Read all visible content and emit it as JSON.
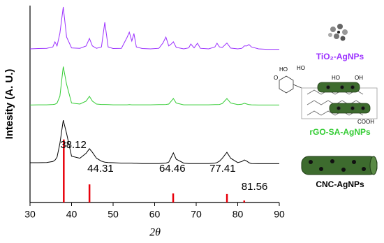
{
  "chart_data": {
    "type": "line",
    "xlabel": "2θ",
    "ylabel": "Intesity (A. U.)",
    "xlim": [
      30,
      90
    ],
    "xticks": [
      30,
      40,
      50,
      60,
      70,
      80,
      90
    ],
    "ylim": [
      0,
      100
    ],
    "x": [
      30,
      32,
      34,
      35.5,
      36,
      36.5,
      37.2,
      38,
      38.8,
      40,
      42,
      43.5,
      44.3,
      45,
      46,
      47.2,
      48,
      48.8,
      50,
      52,
      53.4,
      53.9,
      54.5,
      55,
      55.6,
      57,
      59,
      61,
      62,
      62.7,
      63.4,
      64,
      64.5,
      65.2,
      67,
      68.2,
      68.7,
      69.5,
      70.3,
      71,
      73,
      74.5,
      75,
      75.6,
      76.3,
      77.4,
      78.3,
      80,
      81,
      81.6,
      82.2,
      82.7,
      83.3,
      85,
      87,
      90
    ],
    "series": [
      {
        "name": "TiO₂-AgNPs",
        "color": "#9b30ff",
        "values": [
          78,
          78.2,
          78.3,
          79,
          81.6,
          79.5,
          86,
          99.3,
          84,
          78.5,
          78.3,
          79.5,
          83.3,
          79.5,
          78.3,
          79,
          91.5,
          79,
          78.2,
          78.3,
          84,
          86.5,
          82,
          85.8,
          79,
          78.2,
          78,
          78.3,
          81,
          84,
          79.5,
          80.5,
          81.6,
          78.8,
          78,
          78.5,
          80.5,
          78.5,
          80.9,
          78.3,
          78,
          79,
          80.9,
          79,
          78.8,
          81,
          78.4,
          78,
          78.3,
          79.5,
          79.5,
          80.2,
          79,
          78,
          77.8,
          77.8
        ]
      },
      {
        "name": "rGO-SA-AgNPs",
        "color": "#33cc33",
        "values": [
          49.5,
          49.6,
          49.6,
          49.8,
          49.9,
          50.5,
          54,
          69,
          60,
          50.5,
          50,
          51.5,
          53.9,
          51.5,
          50,
          49.8,
          49.8,
          49.7,
          49.6,
          49.6,
          49.6,
          49.7,
          49.6,
          49.6,
          49.6,
          49.6,
          49.6,
          49.7,
          49.7,
          49.8,
          50,
          51.5,
          52.8,
          50.5,
          49.6,
          49.6,
          49.6,
          49.6,
          49.6,
          49.6,
          49.6,
          49.7,
          49.7,
          49.8,
          50.3,
          52.8,
          50.5,
          49.7,
          49.9,
          50.4,
          50,
          49.7,
          49.6,
          49.5,
          49.5,
          49.5
        ]
      },
      {
        "name": "CNC-AgNPs",
        "color": "#000000",
        "values": [
          20.2,
          20.2,
          20.3,
          20.8,
          21.5,
          23,
          30,
          41.8,
          35,
          23.5,
          22.5,
          25,
          27.3,
          25.5,
          22.5,
          21,
          20.5,
          20.3,
          20.2,
          20,
          20,
          20,
          20,
          19.9,
          19.9,
          19.8,
          19.8,
          19.8,
          19.9,
          20,
          20.5,
          23,
          25.2,
          22,
          20,
          19.8,
          19.8,
          19.8,
          19.8,
          19.8,
          19.8,
          20,
          20.3,
          21,
          22.5,
          25.5,
          22.5,
          20.3,
          20.8,
          21.6,
          21,
          20.2,
          19.8,
          19.7,
          19.7,
          19.7
        ]
      }
    ],
    "sticks": {
      "color": "#e8000b",
      "x": [
        38.12,
        44.31,
        64.46,
        77.41,
        81.56
      ],
      "values": [
        32,
        9.2,
        4.6,
        4.3,
        1
      ]
    },
    "structure_labels": [
      "HO",
      "O",
      "HO",
      "HO",
      "OH",
      "COOH"
    ]
  }
}
